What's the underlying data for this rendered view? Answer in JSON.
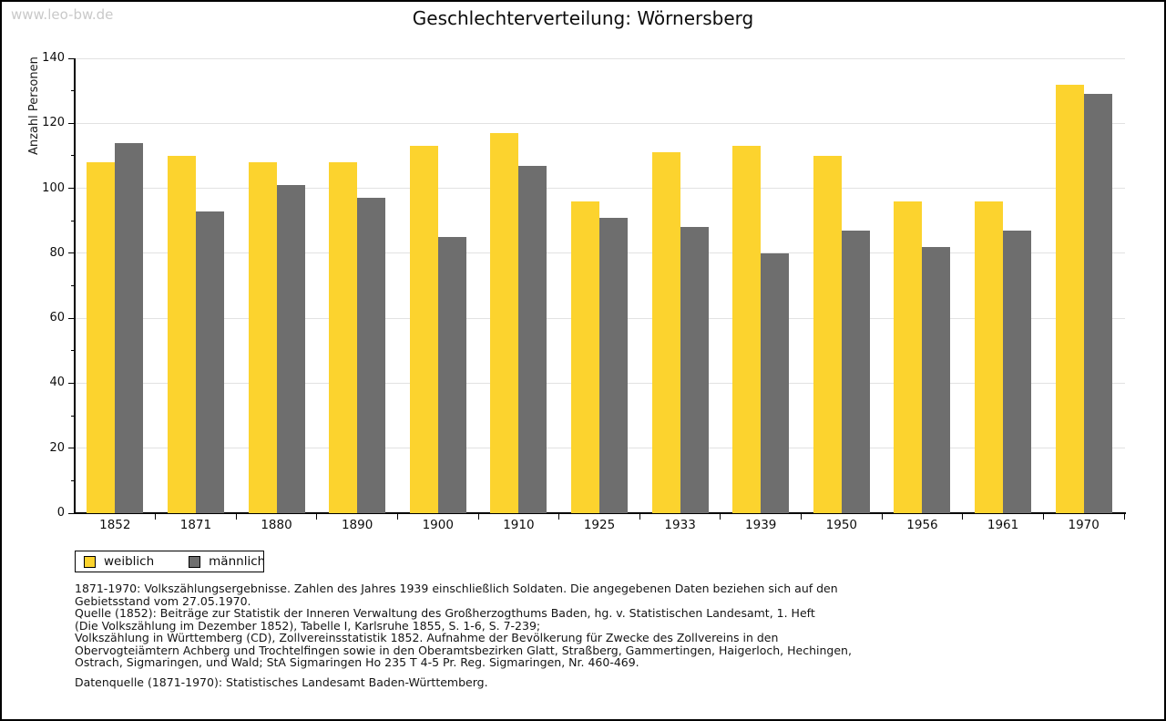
{
  "watermark": "www.leo-bw.de",
  "title": "Geschlechterverteilung: Wörnersberg",
  "chart_data": {
    "type": "bar",
    "title": "Geschlechterverteilung: Wörnersberg",
    "xlabel": "",
    "ylabel": "Anzahl Personen",
    "ylim": [
      0,
      140
    ],
    "yticks": [
      0,
      20,
      40,
      60,
      80,
      100,
      120,
      140
    ],
    "ytick_step": 20,
    "yminor_step": 10,
    "grid": true,
    "legend_position": "bottom-left",
    "categories": [
      "1852",
      "1871",
      "1880",
      "1890",
      "1900",
      "1910",
      "1925",
      "1933",
      "1939",
      "1950",
      "1956",
      "1961",
      "1970"
    ],
    "series": [
      {
        "name": "weiblich",
        "color": "#fcd32e",
        "values": [
          108,
          110,
          108,
          108,
          113,
          117,
          96,
          111,
          113,
          110,
          96,
          96,
          132
        ]
      },
      {
        "name": "männlich",
        "color": "#6e6e6e",
        "values": [
          114,
          93,
          101,
          97,
          85,
          107,
          91,
          88,
          80,
          87,
          82,
          87,
          129
        ]
      }
    ]
  },
  "footnotes": {
    "lines": [
      "1871-1970: Volkszählungsergebnisse. Zahlen des Jahres 1939 einschließlich Soldaten. Die angegebenen Daten beziehen sich auf den",
      "Gebietsstand vom 27.05.1970.",
      "Quelle (1852): Beiträge zur Statistik der Inneren Verwaltung des Großherzogthums Baden, hg. v. Statistischen Landesamt, 1. Heft",
      "(Die Volkszählung im Dezember 1852), Tabelle I, Karlsruhe 1855, S. 1-6, S. 7-239;",
      "Volkszählung in Württemberg (CD), Zollvereinsstatistik 1852. Aufnahme der Bevölkerung für Zwecke des Zollvereins in den",
      "Obervogteiämtern Achberg und Trochtelfingen sowie in den Oberamtsbezirken Glatt, Straßberg, Gammertingen, Haigerloch, Hechingen,",
      "Ostrach, Sigmaringen, und Wald; StA Sigmaringen Ho 235 T 4-5 Pr. Reg. Sigmaringen, Nr. 460-469."
    ],
    "datasource": "Datenquelle (1871-1970): Statistisches Landesamt Baden-Württemberg."
  },
  "colors": {
    "background": "#ffffff",
    "frame": "#000000",
    "axis": "#000000",
    "grid": "#e2e2e2",
    "watermark": "#c9c9c9",
    "weiblich": "#fcd32e",
    "maennlich": "#6e6e6e"
  }
}
